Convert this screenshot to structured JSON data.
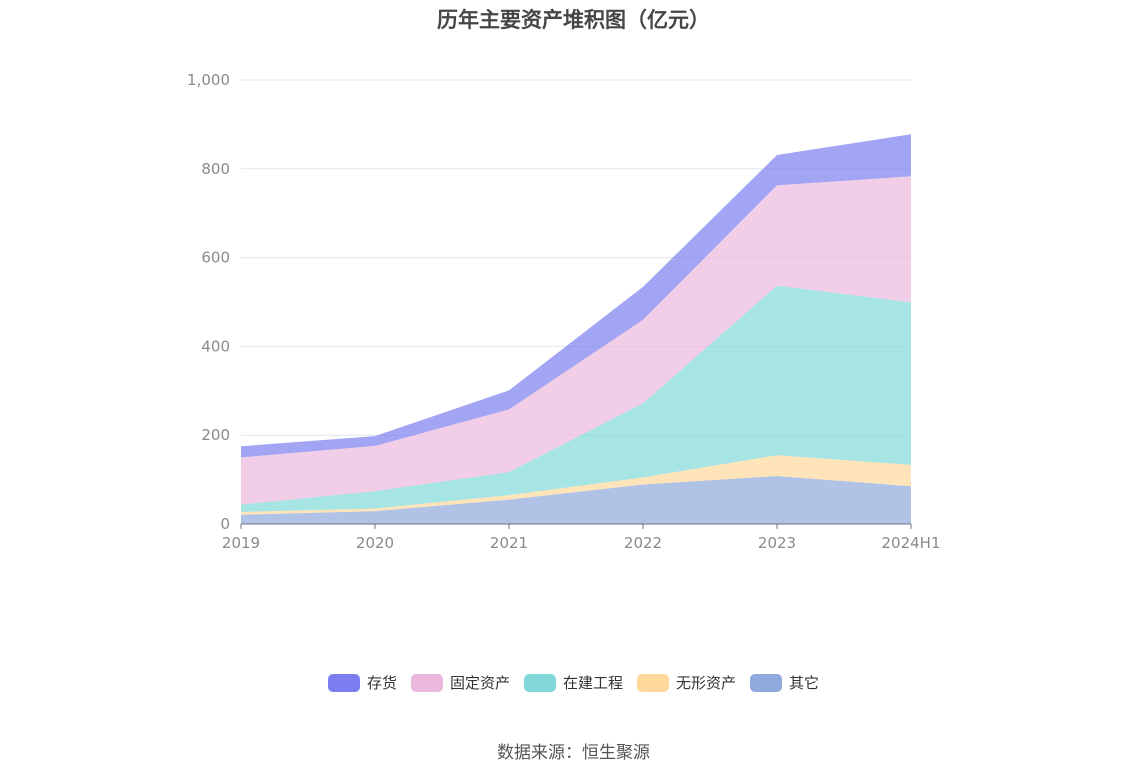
{
  "chart_data": {
    "type": "area",
    "stacked": true,
    "title": "历年主要资产堆积图（亿元）",
    "categories": [
      "2019",
      "2020",
      "2021",
      "2022",
      "2023",
      "2024H1"
    ],
    "ylim": [
      0,
      1000
    ],
    "yticks": [
      0,
      200,
      400,
      600,
      800,
      1000
    ],
    "ytick_labels": [
      "0",
      "200",
      "400",
      "600",
      "800",
      "1,000"
    ],
    "grid": true,
    "legend_position": "bottom",
    "series": [
      {
        "name": "其它",
        "color": "#8FAADC",
        "values": [
          21,
          29,
          55,
          89,
          108,
          85
        ]
      },
      {
        "name": "无形资产",
        "color": "#FFD99B",
        "values": [
          6,
          6,
          10,
          16,
          47,
          48
        ]
      },
      {
        "name": "在建工程",
        "color": "#82D8D8",
        "values": [
          17,
          39,
          52,
          167,
          382,
          366
        ]
      },
      {
        "name": "固定资产",
        "color": "#EBB8DD",
        "values": [
          106,
          102,
          141,
          188,
          226,
          284
        ]
      },
      {
        "name": "存货",
        "color": "#7B7EF0",
        "values": [
          25,
          22,
          43,
          74,
          68,
          95
        ]
      }
    ],
    "source": "数据来源：恒生聚源"
  }
}
